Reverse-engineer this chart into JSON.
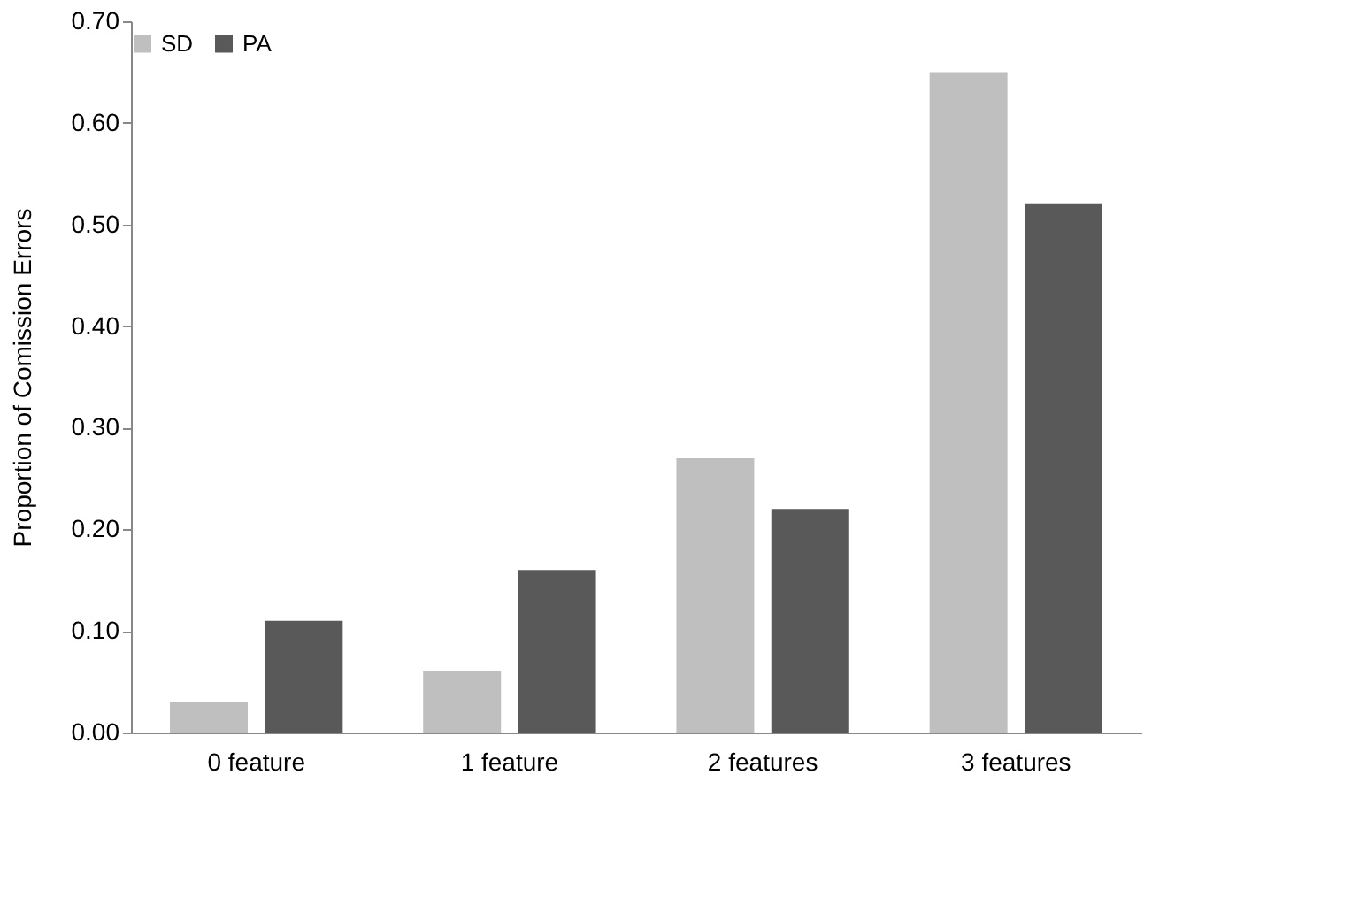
{
  "chart_data": {
    "type": "bar",
    "ylabel": "Proportion of Comission Errors",
    "categories": [
      "0 feature",
      "1 feature",
      "2 features",
      "3 features"
    ],
    "series": [
      {
        "name": "SD",
        "color": "#bfbfbf",
        "values": [
          0.03,
          0.06,
          0.27,
          0.65
        ]
      },
      {
        "name": "PA",
        "color": "#595959",
        "values": [
          0.11,
          0.16,
          0.22,
          0.52
        ]
      }
    ],
    "ylim": [
      0,
      0.7
    ],
    "yticks": [
      {
        "value": 0,
        "label": "0.00"
      },
      {
        "value": 0.1,
        "label": "0.10"
      },
      {
        "value": 0.2,
        "label": "0.20"
      },
      {
        "value": 0.3,
        "label": "0.30"
      },
      {
        "value": 0.4,
        "label": "0.40"
      },
      {
        "value": 0.5,
        "label": "0.50"
      },
      {
        "value": 0.6,
        "label": "0.60"
      },
      {
        "value": 0.7,
        "label": "0.70"
      }
    ],
    "grid": false,
    "legend": "top"
  }
}
